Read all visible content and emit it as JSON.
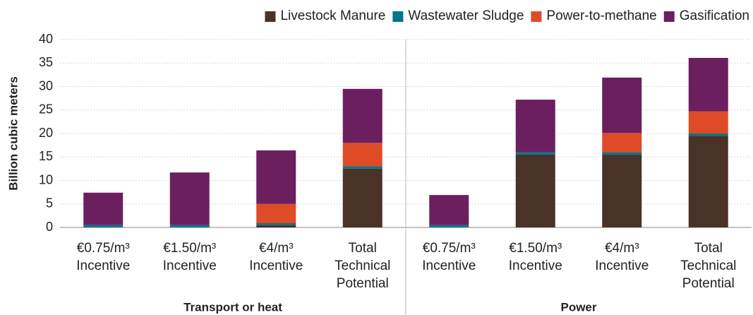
{
  "chart_data": {
    "type": "stacked_bar",
    "y_label": "Billion cubic meters",
    "categories": [
      [
        "€0.75/m³",
        "Incentive"
      ],
      [
        "€1.50/m³",
        "Incentive"
      ],
      [
        "€4/m³",
        "Incentive"
      ],
      [
        "Total",
        "Technical",
        "Potential"
      ],
      [
        "€0.75/m³",
        "Incentive"
      ],
      [
        "€1.50/m³",
        "Incentive"
      ],
      [
        "€4/m³",
        "Incentive"
      ],
      [
        "Total",
        "Technical",
        "Potential"
      ]
    ],
    "groups": [
      "Transport or heat",
      "Power"
    ],
    "series": [
      {
        "name": "Livestock Manure",
        "color": "#4a3228",
        "values": [
          0,
          0,
          0.5,
          12.5,
          0,
          15.5,
          15.5,
          19.5
        ]
      },
      {
        "name": "Wastewater Sludge",
        "color": "#00768a",
        "values": [
          0.5,
          0.5,
          0.4,
          0.5,
          0.5,
          0.5,
          0.5,
          0.5
        ]
      },
      {
        "name": "Power-to-methane",
        "color": "#e04b27",
        "values": [
          0,
          0,
          4.1,
          5.0,
          0,
          0,
          4.1,
          4.7
        ]
      },
      {
        "name": "Gasification",
        "color": "#6b1f5e",
        "values": [
          6.9,
          11.2,
          11.4,
          11.5,
          6.4,
          11.2,
          11.8,
          11.4
        ]
      }
    ],
    "ylim": [
      0,
      40
    ],
    "yticks": [
      0,
      5,
      10,
      15,
      20,
      25,
      30,
      35,
      40
    ],
    "grid": true,
    "legend": "top-right"
  }
}
